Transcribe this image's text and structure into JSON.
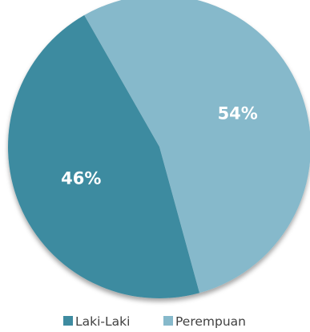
{
  "chart_data": {
    "type": "pie",
    "categories": [
      "Laki-Laki",
      "Perempuan"
    ],
    "values": [
      46,
      54
    ],
    "labels": [
      "46%",
      "54%"
    ],
    "colors": [
      "#3e8ba0",
      "#86b9cb"
    ],
    "legend_position": "bottom"
  }
}
